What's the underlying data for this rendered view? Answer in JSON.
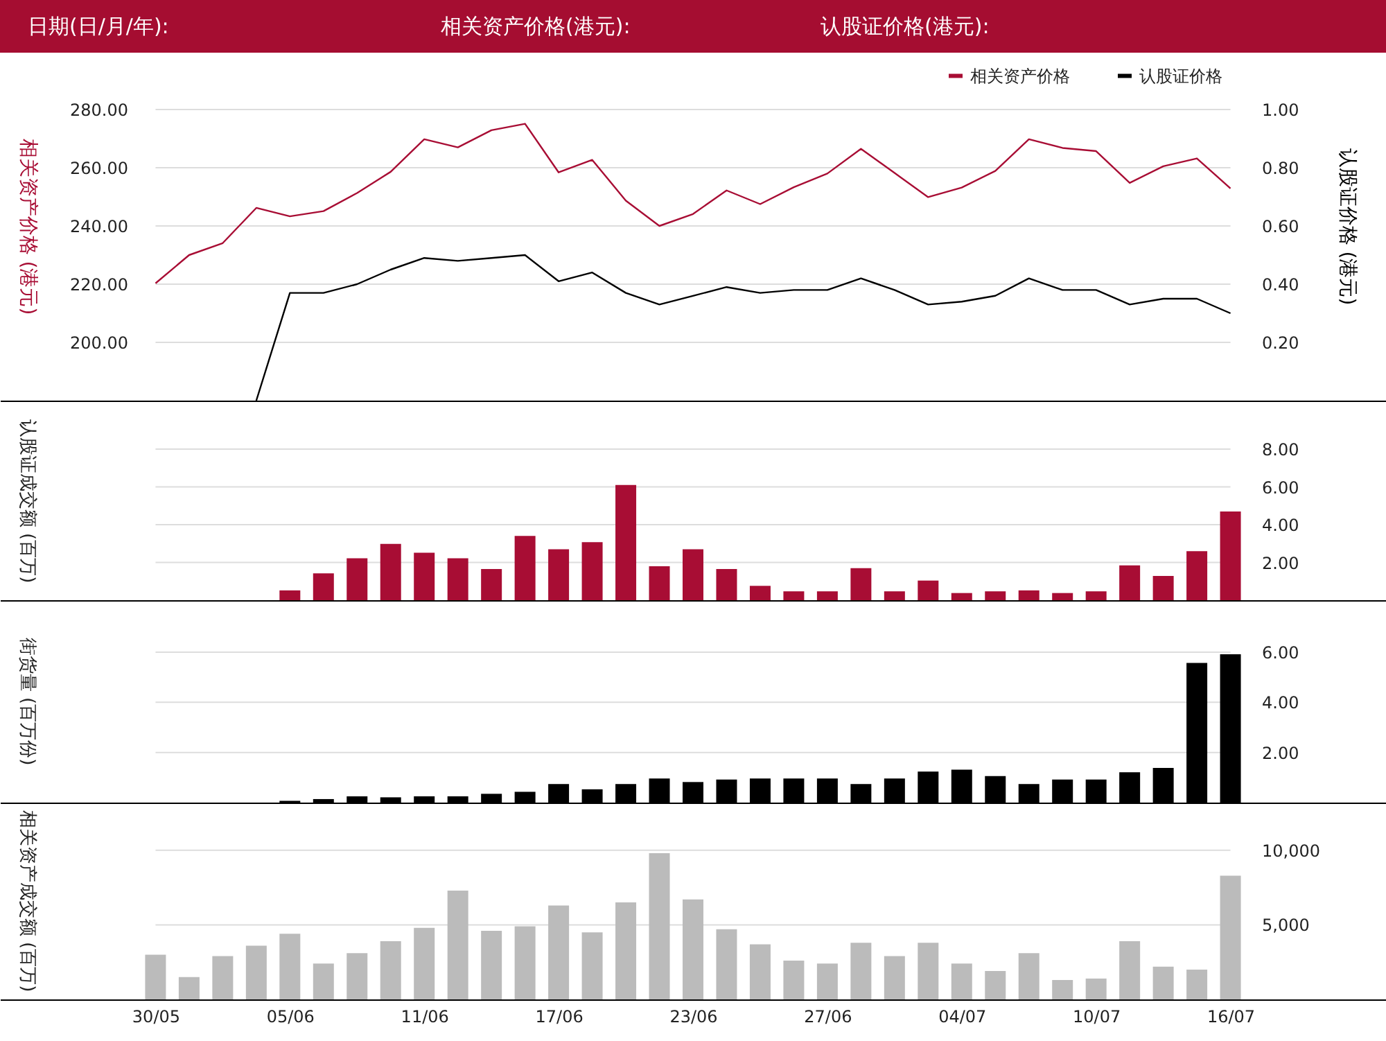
{
  "chart_data": [
    {
      "type": "line",
      "categories": [
        "30/05",
        null,
        null,
        null,
        "05/06",
        null,
        null,
        null,
        "11/06",
        null,
        null,
        null,
        "17/06",
        null,
        null,
        null,
        "23/06",
        null,
        null,
        null,
        "27/06",
        null,
        null,
        null,
        "04/07",
        null,
        null,
        null,
        "10/07",
        null,
        null,
        null,
        "16/07"
      ],
      "series": [
        {
          "name": "相关资产价格",
          "color": "#a80d34",
          "values": [
            220.3,
            230.0,
            234.1,
            246.2,
            243.3,
            245.1,
            251.3,
            258.6,
            269.8,
            267.0,
            272.9,
            275.1,
            258.4,
            262.7,
            248.7,
            240.0,
            244.1,
            252.2,
            247.5,
            253.3,
            258.0,
            266.5,
            258.2,
            249.9,
            253.2,
            258.9,
            269.8,
            266.8,
            265.7,
            254.8,
            260.5,
            263.2,
            252.9
          ]
        },
        {
          "name": "认股证价格",
          "color": "#000000",
          "axis": "y2",
          "values": [
            null,
            null,
            null,
            0,
            0.37,
            0.37,
            0.4,
            0.45,
            0.49,
            0.48,
            0.49,
            0.5,
            0.41,
            0.44,
            0.37,
            0.33,
            0.36,
            0.39,
            0.37,
            0.38,
            0.38,
            0.42,
            0.38,
            0.33,
            0.34,
            0.36,
            0.42,
            0.38,
            0.38,
            0.33,
            0.35,
            0.35,
            0.3
          ]
        }
      ],
      "ylabel": "相关资产价格 (港元)",
      "y2label": "认股证价格 (港元)",
      "ylim": [
        180,
        280
      ],
      "yticks": [
        {
          "value": 200,
          "label": "200.00"
        },
        {
          "value": 220,
          "label": "220.00"
        },
        {
          "value": 240,
          "label": "240.00"
        },
        {
          "value": 260,
          "label": "260.00"
        },
        {
          "value": 280,
          "label": "280.00"
        }
      ],
      "y2lim": [
        0,
        1.0
      ],
      "y2ticks": [
        {
          "value": 0.2,
          "label": "0.20"
        },
        {
          "value": 0.4,
          "label": "0.40"
        },
        {
          "value": 0.6,
          "label": "0.60"
        },
        {
          "value": 0.8,
          "label": "0.80"
        },
        {
          "value": 1.0,
          "label": "1.00"
        }
      ],
      "grid": "y",
      "legend": "top right",
      "tick_labels": "y",
      "annotations": [
        "日期(日/月/年):",
        "相关资产价格(港元):",
        "认股证价格(港元):"
      ]
    },
    {
      "type": "bar",
      "categories": [
        "30/05",
        null,
        null,
        null,
        "05/06",
        null,
        null,
        null,
        "11/06",
        null,
        null,
        null,
        "17/06",
        null,
        null,
        null,
        "23/06",
        null,
        null,
        null,
        "27/06",
        null,
        null,
        null,
        "04/07",
        null,
        null,
        null,
        "10/07",
        null,
        null,
        null,
        "16/07"
      ],
      "series": [
        {
          "color": "#a80d34",
          "values": [
            null,
            null,
            null,
            null,
            0.52,
            1.42,
            2.22,
            2.98,
            2.51,
            2.22,
            1.65,
            3.4,
            2.7,
            3.07,
            6.1,
            1.8,
            2.7,
            1.65,
            0.76,
            0.47,
            0.47,
            1.7,
            0.47,
            1.04,
            0.38,
            0.47,
            0.52,
            0.38,
            0.47,
            1.84,
            1.28,
            2.6,
            4.7
          ]
        }
      ],
      "ylabel": "认股证成交额 (百万)",
      "ylim": [
        0,
        8
      ],
      "yticks": [
        {
          "value": 2,
          "label": "2.00"
        },
        {
          "value": 4,
          "label": "4.00"
        },
        {
          "value": 6,
          "label": "6.00"
        },
        {
          "value": 8,
          "label": "8.00"
        }
      ],
      "grid": "y",
      "tick_labels": "y"
    },
    {
      "type": "bar",
      "categories": [
        "30/05",
        null,
        null,
        null,
        "05/06",
        null,
        null,
        null,
        "11/06",
        null,
        null,
        null,
        "17/06",
        null,
        null,
        null,
        "23/06",
        null,
        null,
        null,
        "27/06",
        null,
        null,
        null,
        "04/07",
        null,
        null,
        null,
        "10/07",
        null,
        null,
        null,
        "16/07"
      ],
      "series": [
        {
          "color": "#000000",
          "values": [
            null,
            null,
            null,
            null,
            0.07,
            0.14,
            0.25,
            0.21,
            0.25,
            0.25,
            0.35,
            0.43,
            0.74,
            0.53,
            0.74,
            0.96,
            0.82,
            0.92,
            0.96,
            0.96,
            0.96,
            0.74,
            0.96,
            1.24,
            1.31,
            1.06,
            0.74,
            0.92,
            0.92,
            1.21,
            1.38,
            5.57,
            5.92
          ]
        }
      ],
      "ylabel": "街货量 (百万份)",
      "ylim": [
        0,
        6
      ],
      "yticks": [
        {
          "value": 2,
          "label": "2.00"
        },
        {
          "value": 4,
          "label": "4.00"
        },
        {
          "value": 6,
          "label": "6.00"
        }
      ],
      "grid": "y",
      "tick_labels": "y"
    },
    {
      "type": "bar",
      "categories": [
        "30/05",
        null,
        null,
        null,
        "05/06",
        null,
        null,
        null,
        "11/06",
        null,
        null,
        null,
        "17/06",
        null,
        null,
        null,
        "23/06",
        null,
        null,
        null,
        "27/06",
        null,
        null,
        null,
        "04/07",
        null,
        null,
        null,
        "10/07",
        null,
        null,
        null,
        "16/07"
      ],
      "series": [
        {
          "color": "#bbbbbb",
          "values": [
            3000,
            1500,
            2900,
            3600,
            4400,
            2400,
            3100,
            3900,
            4800,
            7300,
            4600,
            4900,
            6300,
            4500,
            6500,
            9800,
            6700,
            4700,
            3700,
            2600,
            2400,
            3800,
            2900,
            3800,
            2400,
            1900,
            3100,
            1300,
            1400,
            3900,
            2200,
            2000,
            8300
          ]
        }
      ],
      "ylabel": "相关资产成交额 (百万)",
      "ylim": [
        0,
        10000
      ],
      "yticks": [
        {
          "value": 5000,
          "label": "5,000"
        },
        {
          "value": 10000,
          "label": "10,000"
        }
      ],
      "grid": "y"
    }
  ]
}
